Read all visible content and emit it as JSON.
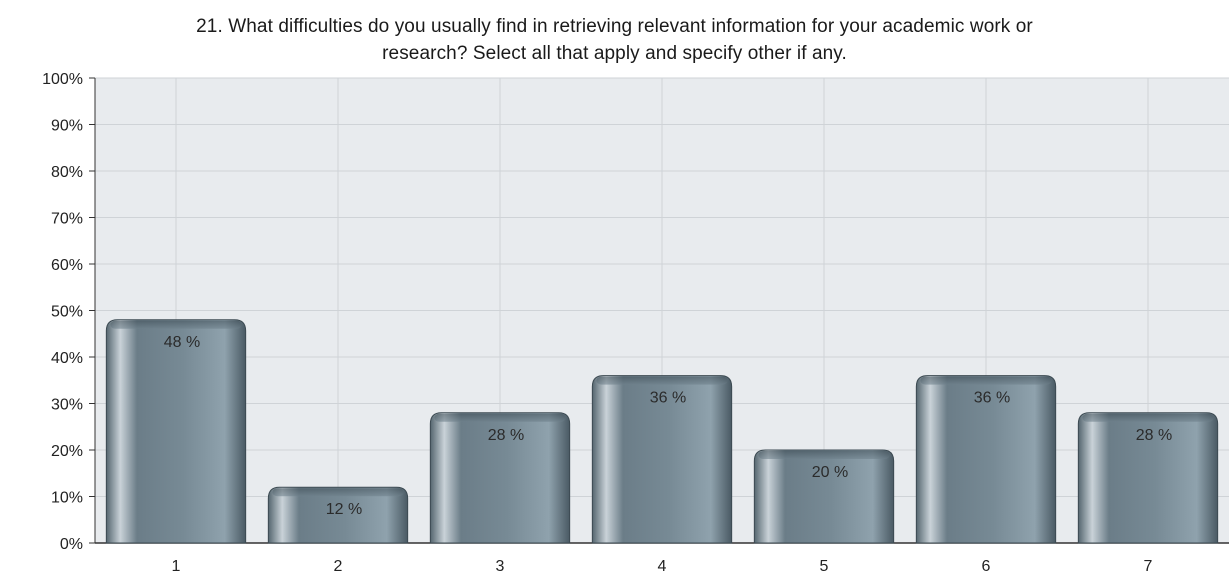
{
  "chart_data": {
    "type": "bar",
    "title_line_1": "21. What difficulties do you usually find in retrieving relevant information for your academic work or",
    "title_line_2": "research? Select all that apply and specify other if any.",
    "categories": [
      "1",
      "2",
      "3",
      "4",
      "5",
      "6",
      "7"
    ],
    "values": [
      48,
      12,
      28,
      36,
      20,
      36,
      28
    ],
    "value_labels": [
      "48 %",
      "12 %",
      "28 %",
      "36 %",
      "20 %",
      "36 %",
      "28 %"
    ],
    "y_ticks": [
      "0%",
      "10%",
      "20%",
      "30%",
      "40%",
      "50%",
      "60%",
      "70%",
      "80%",
      "90%",
      "100%"
    ],
    "ylim": [
      0,
      100
    ],
    "xlabel": "",
    "ylabel": "",
    "grid": true,
    "colors": {
      "plot_bg": "#e8ebee",
      "grid": "#cfd3d7",
      "bar_dark": "#4d5e69",
      "bar_mid": "#7f929d",
      "bar_light": "#c6d0d6",
      "bar_top": "#5d6e79"
    }
  }
}
